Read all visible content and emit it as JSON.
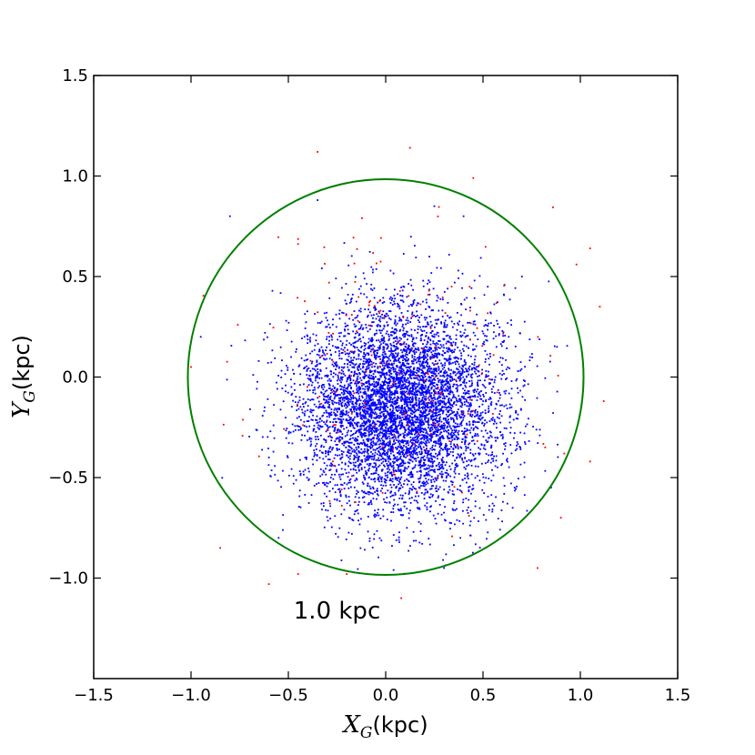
{
  "chart_data": {
    "type": "scatter",
    "title": "",
    "xlabel": {
      "main": "X",
      "sub": "G",
      "unit": "(kpc)"
    },
    "ylabel": {
      "main": "Y",
      "sub": "G",
      "unit": "(kpc)"
    },
    "xlim": [
      -1.5,
      1.5
    ],
    "ylim": [
      -1.5,
      1.5
    ],
    "xticks": [
      -1.5,
      -1.0,
      -0.5,
      0.0,
      0.5,
      1.0,
      1.5
    ],
    "xtick_labels": [
      "−1.5",
      "−1.0",
      "−0.5",
      "0.0",
      "0.5",
      "1.0",
      "1.5"
    ],
    "yticks": [
      1.5,
      1.0,
      0.5,
      0.0,
      -0.5,
      -1.0
    ],
    "ytick_labels": [
      "1.5",
      "1.0",
      "0.5",
      "0.0",
      "−0.5",
      "−1.0"
    ],
    "grid": false,
    "legend": "none",
    "circle": {
      "center": [
        0.0,
        0.0
      ],
      "radius": 1.0,
      "color": "#008000"
    },
    "annotation": {
      "text": "1.0 kpc",
      "x": -0.25,
      "y": -1.16
    },
    "series": [
      {
        "color": "#0000ff",
        "generator": {
          "count": 6200,
          "center": [
            0.08,
            -0.15
          ],
          "spread": [
            0.26,
            0.25
          ],
          "seed": 7
        },
        "points": [
          [
            -0.8,
            0.8
          ],
          [
            -0.35,
            0.88
          ],
          [
            0.25,
            0.85
          ],
          [
            0.4,
            0.8
          ],
          [
            -0.62,
            0.22
          ],
          [
            -0.95,
            0.2
          ],
          [
            0.88,
            0.15
          ],
          [
            0.85,
            -0.55
          ],
          [
            -0.55,
            -0.8
          ],
          [
            0.3,
            -0.95
          ],
          [
            -0.6,
            -0.4
          ],
          [
            0.7,
            0.5
          ]
        ]
      },
      {
        "color": "#ff0000",
        "generator": {
          "count": 180,
          "center": [
            0.05,
            0.05
          ],
          "spread": [
            0.35,
            0.4
          ],
          "seed": 11
        },
        "points": [
          [
            -0.35,
            1.12
          ],
          [
            0.45,
            0.99
          ],
          [
            1.05,
            0.64
          ],
          [
            0.98,
            0.56
          ],
          [
            1.12,
            -0.12
          ],
          [
            1.05,
            -0.42
          ],
          [
            -1.0,
            0.05
          ],
          [
            -0.95,
            -0.35
          ],
          [
            -0.85,
            -0.85
          ],
          [
            -0.6,
            -1.03
          ],
          [
            -0.45,
            -0.98
          ],
          [
            0.78,
            -0.95
          ],
          [
            1.1,
            0.35
          ],
          [
            0.9,
            -0.7
          ],
          [
            -0.2,
            -0.98
          ],
          [
            0.08,
            -1.1
          ]
        ]
      }
    ]
  }
}
